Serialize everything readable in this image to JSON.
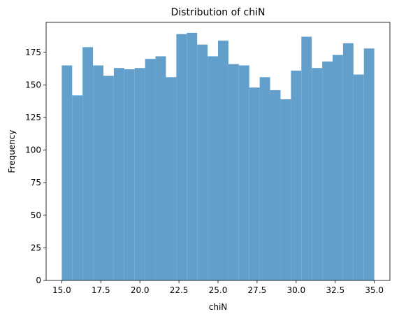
{
  "chart_data": {
    "type": "bar",
    "title": "Distribution of chiN",
    "xlabel": "chiN",
    "ylabel": "Frequency",
    "xlim": [
      14.0,
      36.0
    ],
    "ylim": [
      0,
      198
    ],
    "grid": false,
    "bar_color": "#62A0CB",
    "bin_edges": [
      15.0,
      15.6667,
      16.3333,
      17.0,
      17.6667,
      18.3333,
      19.0,
      19.6667,
      20.3333,
      21.0,
      21.6667,
      22.3333,
      23.0,
      23.6667,
      24.3333,
      25.0,
      25.6667,
      26.3333,
      27.0,
      27.6667,
      28.3333,
      29.0,
      29.6667,
      30.3333,
      31.0,
      31.6667,
      32.3333,
      33.0,
      33.6667,
      34.3333,
      35.0
    ],
    "values": [
      165,
      142,
      179,
      165,
      157,
      163,
      162,
      163,
      170,
      172,
      156,
      189,
      190,
      181,
      172,
      184,
      166,
      165,
      148,
      156,
      146,
      139,
      161,
      187,
      163,
      168,
      173,
      182,
      158,
      178
    ],
    "x_ticks": [
      {
        "value": 15.0,
        "label": "15.0"
      },
      {
        "value": 17.5,
        "label": "17.5"
      },
      {
        "value": 20.0,
        "label": "20.0"
      },
      {
        "value": 22.5,
        "label": "22.5"
      },
      {
        "value": 25.0,
        "label": "25.0"
      },
      {
        "value": 27.5,
        "label": "27.5"
      },
      {
        "value": 30.0,
        "label": "30.0"
      },
      {
        "value": 32.5,
        "label": "32.5"
      },
      {
        "value": 35.0,
        "label": "35.0"
      }
    ],
    "y_ticks": [
      {
        "value": 0,
        "label": "0"
      },
      {
        "value": 25,
        "label": "25"
      },
      {
        "value": 50,
        "label": "50"
      },
      {
        "value": 75,
        "label": "75"
      },
      {
        "value": 100,
        "label": "100"
      },
      {
        "value": 125,
        "label": "125"
      },
      {
        "value": 150,
        "label": "150"
      },
      {
        "value": 175,
        "label": "175"
      }
    ]
  }
}
